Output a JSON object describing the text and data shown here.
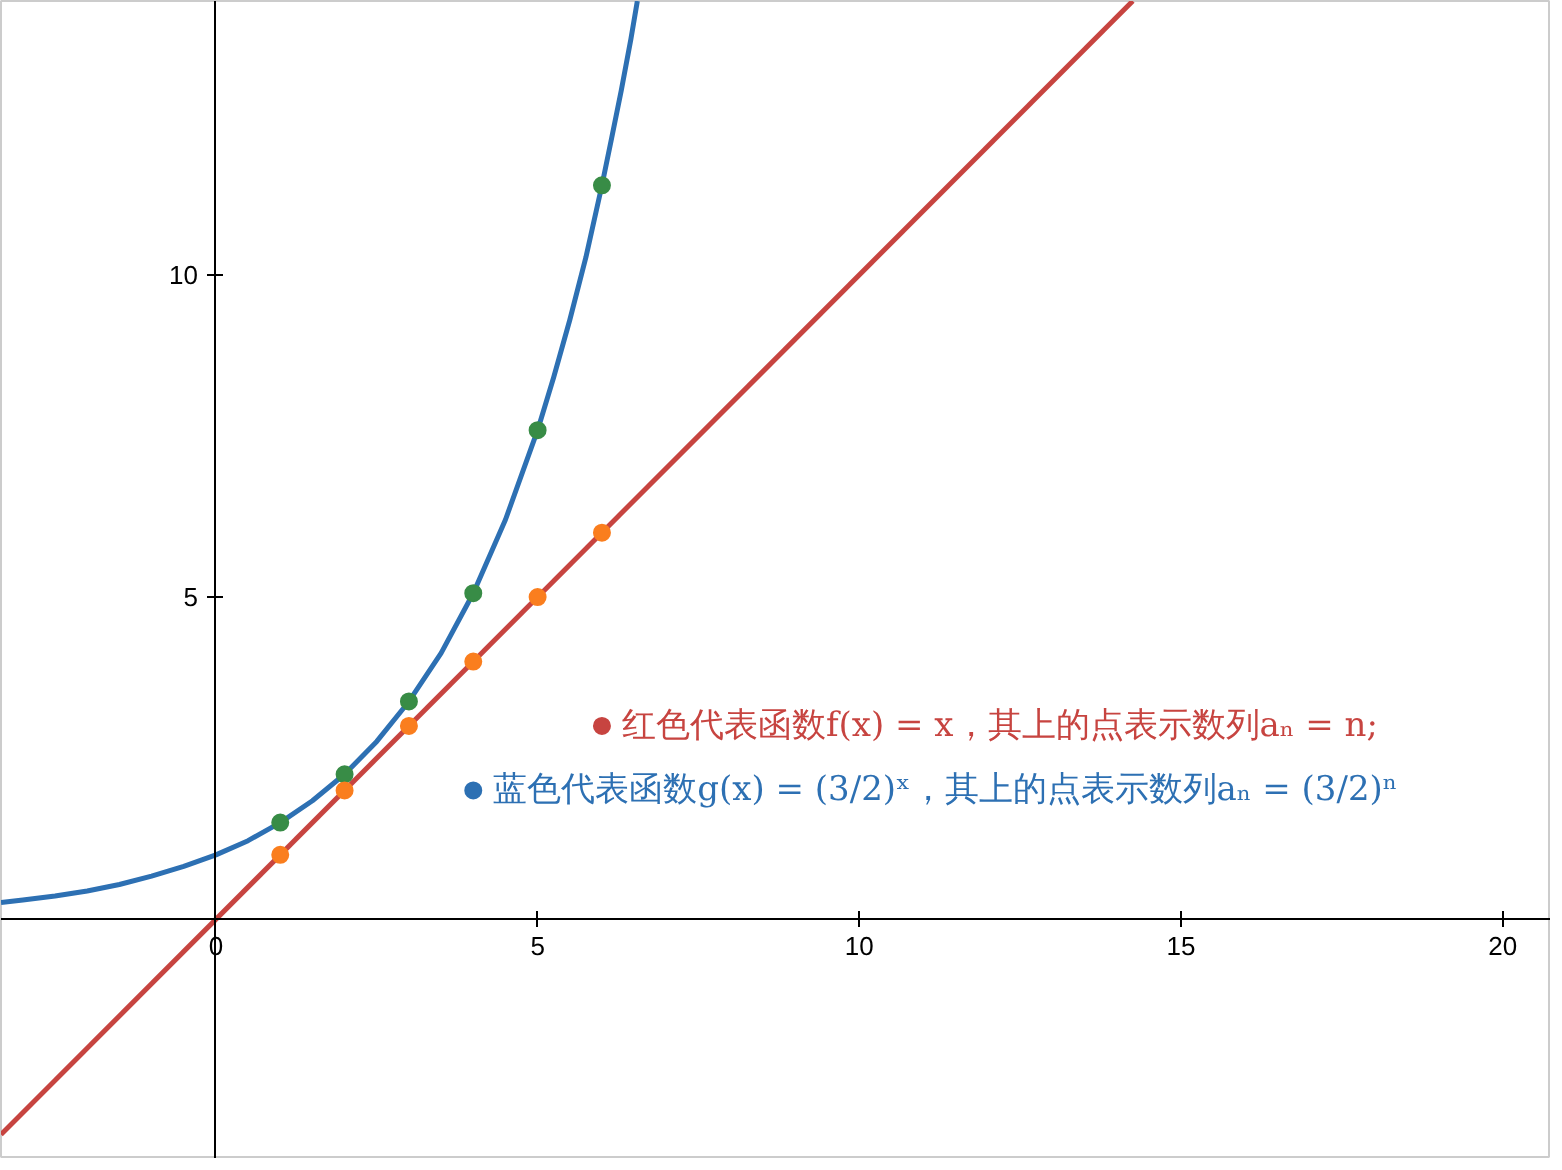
{
  "chart_data": {
    "type": "line",
    "xlim": [
      -3.34,
      20.75
    ],
    "ylim": [
      -3.72,
      14.25
    ],
    "xticks": [
      0,
      5,
      10,
      15,
      20
    ],
    "yticks": [
      5,
      10
    ],
    "grid": false,
    "legend": false,
    "marker": "none",
    "series": [
      {
        "color": "#2d70b3",
        "x": [
          -3.34,
          -3,
          -2.5,
          -2,
          -1.5,
          -1,
          -0.5,
          0,
          0.5,
          1,
          1.5,
          2,
          2.5,
          3,
          3.5,
          4,
          4.5,
          5,
          5.25,
          5.5,
          5.75,
          6,
          6.15,
          6.3,
          6.45,
          6.55
        ],
        "values": [
          0.26,
          0.3,
          0.36,
          0.44,
          0.54,
          0.67,
          0.82,
          1,
          1.22,
          1.5,
          1.84,
          2.25,
          2.76,
          3.38,
          4.13,
          5.06,
          6.2,
          7.59,
          8.41,
          9.3,
          10.27,
          11.39,
          12.12,
          12.86,
          13.66,
          14.25
        ]
      },
      {
        "color": "#c74440",
        "x": [
          -3.34,
          14.25
        ],
        "values": [
          -3.34,
          14.25
        ]
      },
      {
        "type": "scatter",
        "marker": "circle",
        "color": "#388c46",
        "x": [
          1,
          2,
          3,
          4,
          5,
          6
        ],
        "values": [
          1.5,
          2.25,
          3.38,
          5.06,
          7.59,
          11.39
        ]
      },
      {
        "type": "scatter",
        "marker": "circle",
        "color": "#fa7e1e",
        "x": [
          1,
          2,
          3,
          4,
          5,
          6
        ],
        "values": [
          1,
          2,
          3,
          4,
          5,
          6
        ]
      },
      {
        "type": "scatter",
        "marker": "circle",
        "color": "#c74440",
        "name": "红色代表函数f(x) = x，其上的点表示数列aₙ = n;",
        "x": [
          6
        ],
        "values": [
          3.0
        ]
      },
      {
        "type": "scatter",
        "marker": "circle",
        "color": "#2d70b3",
        "name": "蓝色代表函数g(x) = (3/2)ˣ，其上的点表示数列aₙ = (3/2)ⁿ",
        "x": [
          4
        ],
        "values": [
          2.0
        ]
      }
    ]
  }
}
